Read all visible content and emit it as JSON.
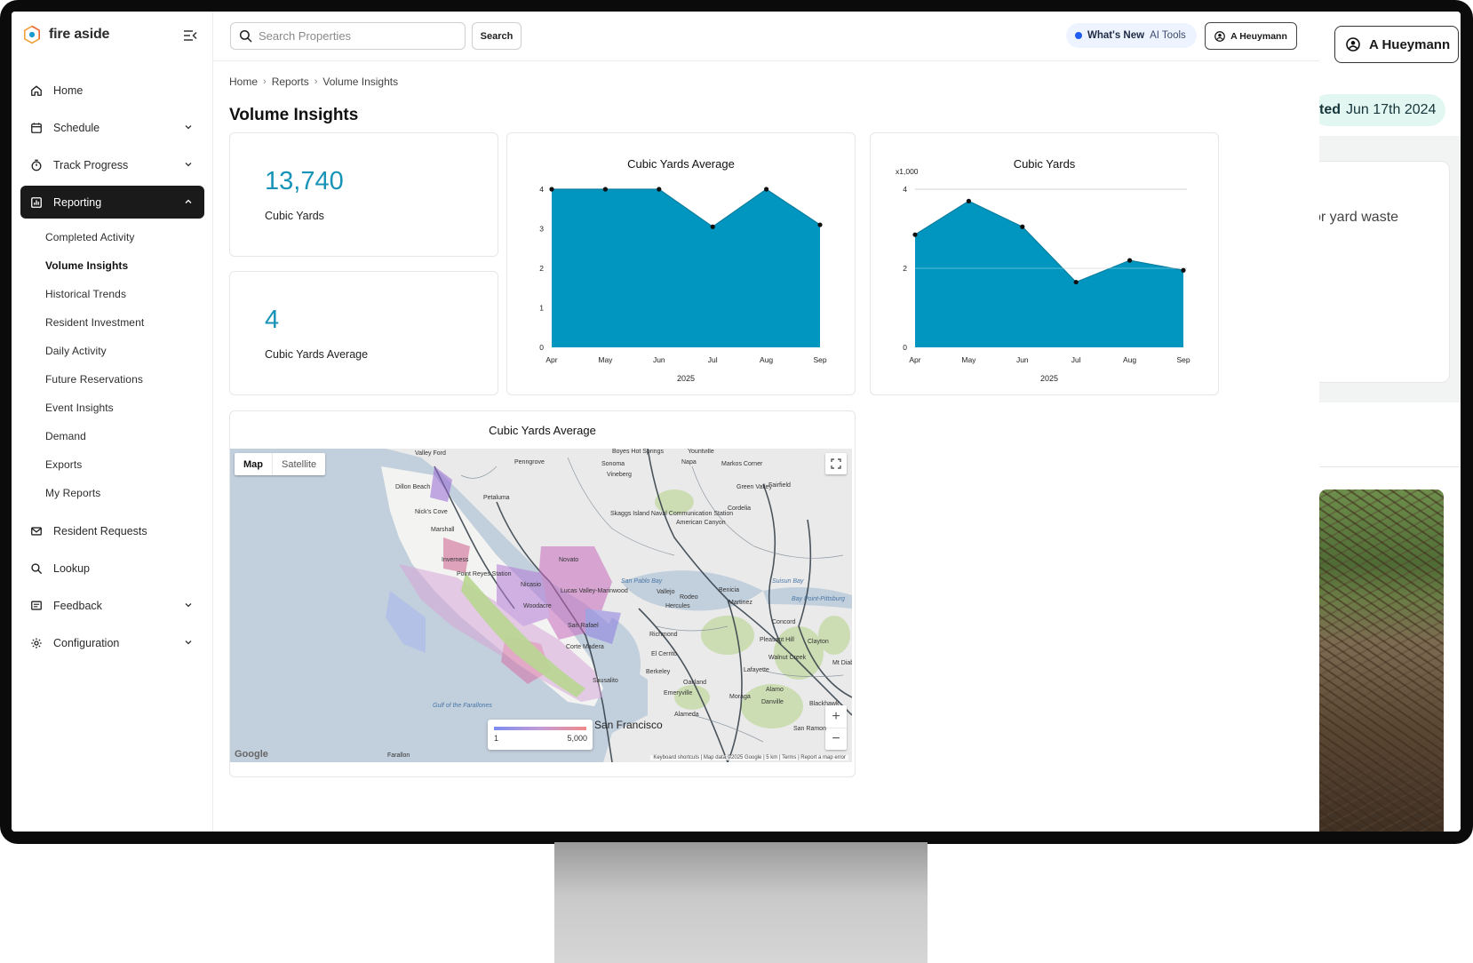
{
  "brand": {
    "name": "fire aside"
  },
  "search": {
    "placeholder": "Search Properties",
    "button": "Search"
  },
  "header": {
    "whats_new": "What's New",
    "ai_tools": "AI Tools",
    "user": "A Heuymann"
  },
  "sidebar": {
    "items": [
      {
        "label": "Home",
        "icon": "home-icon"
      },
      {
        "label": "Schedule",
        "icon": "calendar-icon",
        "expandable": true
      },
      {
        "label": "Track Progress",
        "icon": "stopwatch-icon",
        "expandable": true
      },
      {
        "label": "Reporting",
        "icon": "bar-chart-icon",
        "expandable": true,
        "active": true
      },
      {
        "label": "Resident Requests",
        "icon": "mail-icon"
      },
      {
        "label": "Lookup",
        "icon": "search-icon"
      },
      {
        "label": "Feedback",
        "icon": "feedback-icon",
        "expandable": true
      },
      {
        "label": "Configuration",
        "icon": "gear-icon",
        "expandable": true
      }
    ],
    "reporting_sub": [
      "Completed Activity",
      "Volume Insights",
      "Historical Trends",
      "Resident Investment",
      "Daily Activity",
      "Future Reservations",
      "Event Insights",
      "Demand",
      "Exports",
      "My Reports"
    ],
    "current_sub": "Volume Insights"
  },
  "breadcrumb": [
    "Home",
    "Reports",
    "Volume Insights"
  ],
  "page_title": "Volume Insights",
  "stats": [
    {
      "value": "13,740",
      "label": "Cubic Yards"
    },
    {
      "value": "4",
      "label": "Cubic Yards Average"
    }
  ],
  "accent_color": "#0096bf",
  "chart_data": [
    {
      "type": "area",
      "title": "Cubic Yards Average",
      "x": [
        "Apr",
        "May",
        "Jun",
        "Jul",
        "Aug",
        "Sep"
      ],
      "xlabel": "2025",
      "ylabel": "",
      "ylim": [
        0,
        4
      ],
      "yticks": [
        0,
        1,
        2,
        3,
        4
      ],
      "series": [
        {
          "values": [
            4,
            4,
            4,
            3.05,
            4,
            3.1
          ]
        }
      ],
      "grid": false
    },
    {
      "type": "area",
      "title": "Cubic Yards",
      "x": [
        "Apr",
        "May",
        "Jun",
        "Jul",
        "Aug",
        "Sep"
      ],
      "xlabel": "2025",
      "ylabel": "x1,000",
      "ylim": [
        0,
        4
      ],
      "yticks": [
        0,
        2,
        4
      ],
      "series": [
        {
          "values": [
            2.85,
            3.7,
            3.05,
            1.65,
            2.2,
            1.95
          ]
        }
      ],
      "grid": true
    }
  ],
  "map": {
    "title": "Cubic Yards Average",
    "toggle": [
      "Map",
      "Satellite"
    ],
    "legend_min": "1",
    "legend_max": "5,000",
    "google": "Google",
    "attribution": "Keyboard shortcuts | Map data ©2025 Google | 5 km | Terms | Report a map error",
    "city": "San Francisco",
    "places": [
      "Valley Ford",
      "Dillon Beach",
      "Nick's Cove",
      "Marshall",
      "Point Reyes Station",
      "Inverness",
      "Nicasio",
      "Novato",
      "Lucas Valley-Marinwood",
      "Woodacre",
      "San Rafael",
      "Corte Madera",
      "Sausalito",
      "Petaluma",
      "Penngrove",
      "Sonoma",
      "Vineberg",
      "Napa",
      "Fairfield",
      "Cordelia",
      "Green Valley",
      "American Canyon",
      "Skaggs Island Naval Communication Station",
      "Vallejo",
      "Benicia",
      "Martinez",
      "Hercules",
      "Rodeo",
      "Richmond",
      "El Cerrito",
      "Berkeley",
      "Oakland",
      "Alameda",
      "Emeryville",
      "Concord",
      "Pleasant Hill",
      "Clayton",
      "Walnut Creek",
      "Lafayette",
      "Moraga",
      "Danville",
      "Alamo",
      "San Ramon",
      "Blackhawk",
      "Bay Point-Pittsburg",
      "Mt Diablo",
      "Farallon",
      "Boyes Hot Springs",
      "Yountville",
      "Markos Corner",
      "San Pablo Bay",
      "Suisun Bay",
      "Gulf of the Farallones"
    ]
  },
  "background_window": {
    "user": "A Hueymann",
    "updated_prefix": "ted",
    "updated_date": "Jun 17th 2024",
    "text": "or yard waste"
  }
}
